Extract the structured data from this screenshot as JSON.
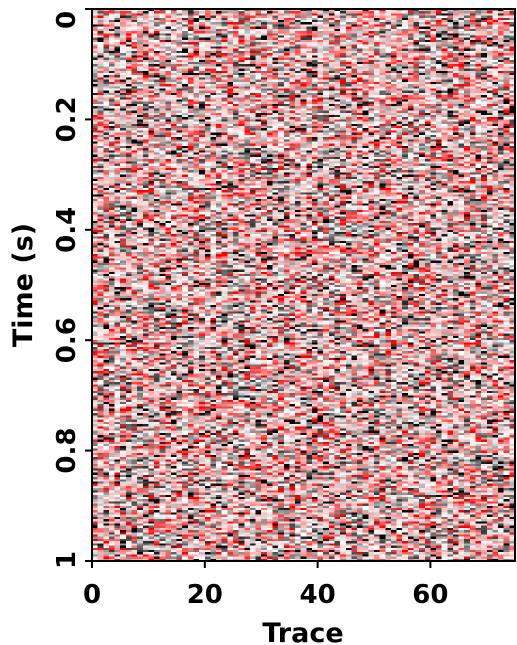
{
  "chart_data": {
    "type": "heatmap",
    "title": "",
    "xlabel": "Trace",
    "ylabel": "Time (s)",
    "xlim": [
      0,
      75
    ],
    "ylim": [
      0,
      1
    ],
    "y_inverted": true,
    "xticks": [
      0,
      20,
      40,
      60
    ],
    "xtick_labels": [
      "0",
      "20",
      "40",
      "60"
    ],
    "yticks": [
      0,
      0.2,
      0.4,
      0.6,
      0.8,
      1
    ],
    "ytick_labels": [
      "0",
      "0.2",
      "0.4",
      "0.6",
      "0.8",
      "1"
    ],
    "n_traces": 75,
    "n_samples": 250,
    "grid": false,
    "legend": "none",
    "colormap": {
      "negative": "#000000",
      "zero": "#ffffff",
      "positive": "#ff0000"
    },
    "description_of_values": "random-noise amplitudes per trace and time sample"
  }
}
